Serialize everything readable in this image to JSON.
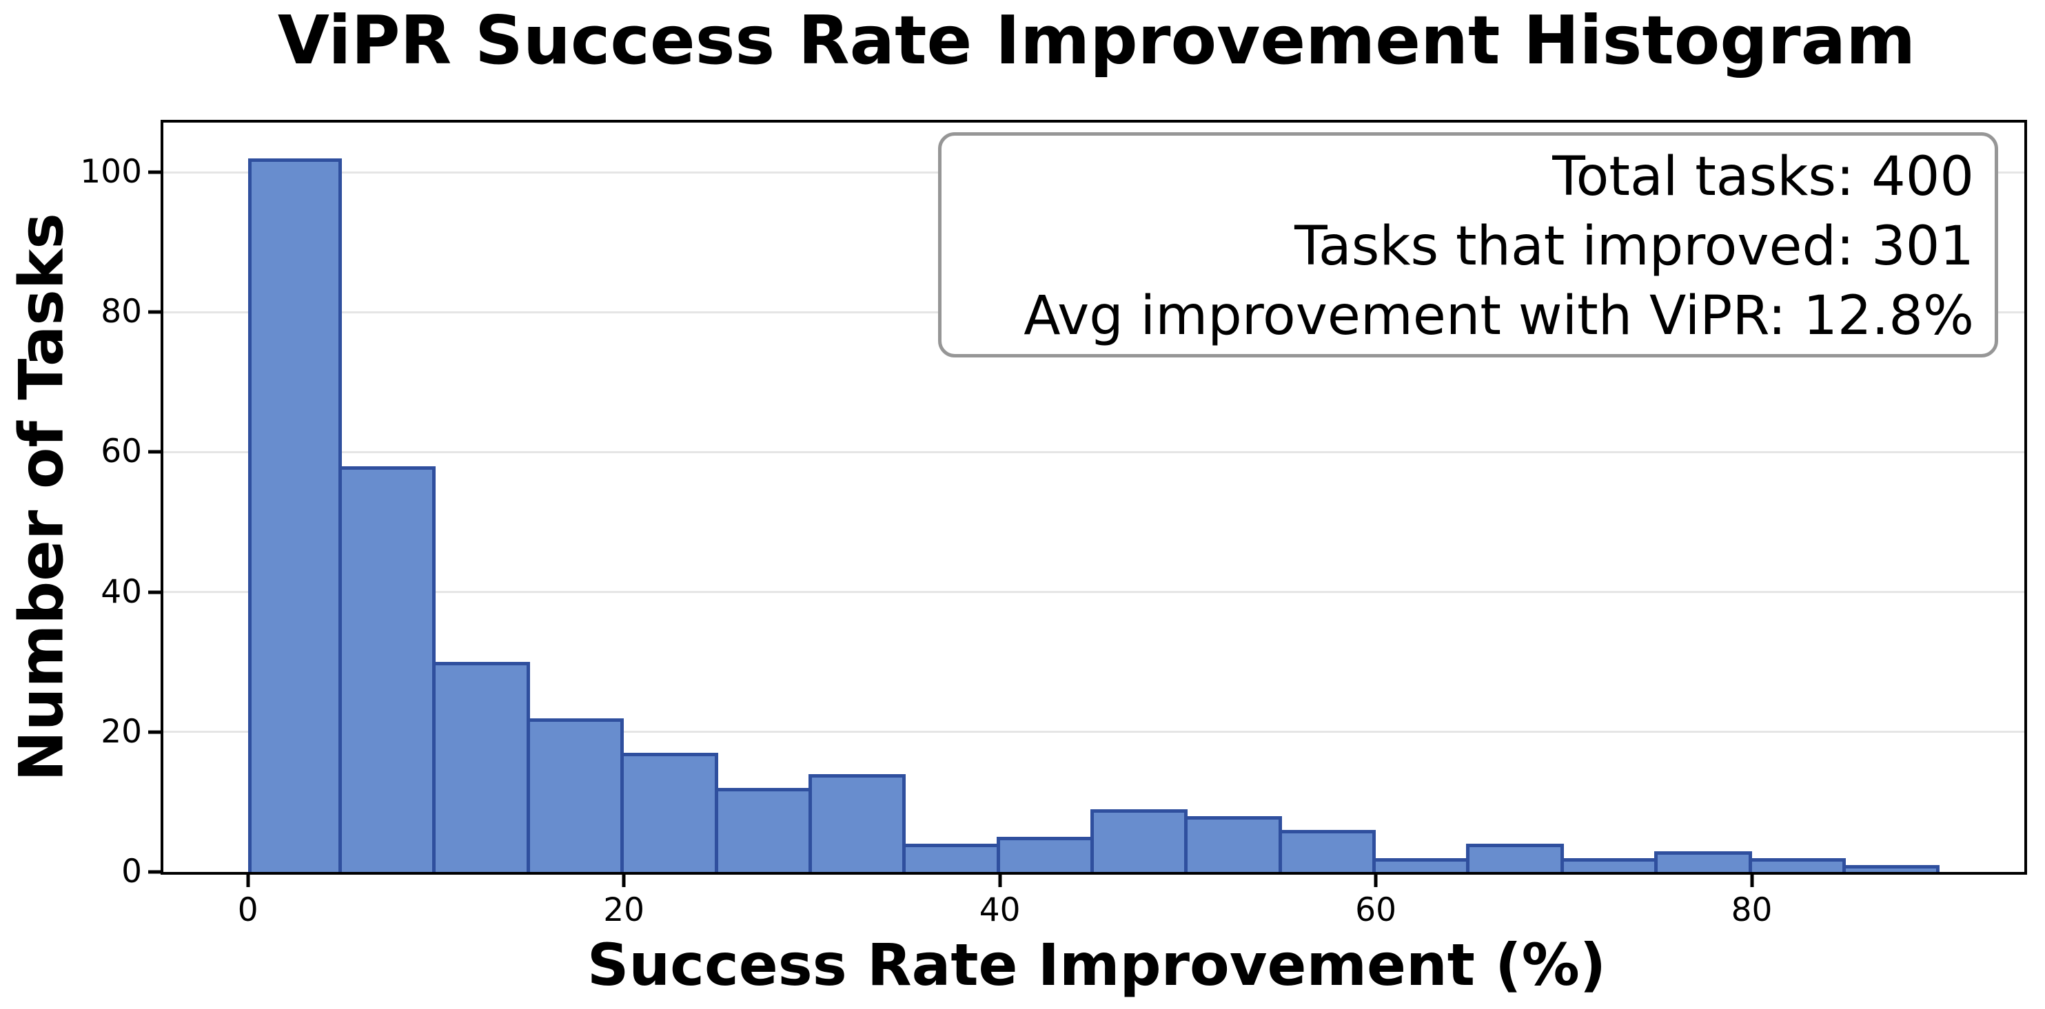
{
  "chart_data": {
    "type": "bar",
    "subtype": "histogram",
    "title": "ViPR Success Rate Improvement Histogram",
    "xlabel": "Success Rate Improvement (%)",
    "ylabel": "Number of Tasks",
    "bin_width": 5,
    "bin_edges": [
      0,
      5,
      10,
      15,
      20,
      25,
      30,
      35,
      40,
      45,
      50,
      55,
      60,
      65,
      70,
      75,
      80,
      85,
      90
    ],
    "counts": [
      102,
      58,
      30,
      22,
      17,
      12,
      14,
      4,
      5,
      9,
      8,
      6,
      2,
      4,
      2,
      3,
      2,
      1
    ],
    "xticks": [
      0,
      20,
      40,
      60,
      80
    ],
    "yticks": [
      0,
      20,
      40,
      60,
      80,
      100
    ],
    "xlim": [
      -4.5,
      94.5
    ],
    "ylim": [
      0,
      107.1
    ],
    "grid": "horizontal",
    "legend": "none",
    "annotation": {
      "lines": [
        "Total tasks: 400",
        "Tasks that improved: 301",
        "Avg improvement with ViPR: 12.8%"
      ]
    },
    "colors": {
      "bar_fill": "#688dce",
      "bar_edge": "#2f4f9e",
      "grid": "#e5e5e5",
      "axis": "#000000",
      "text": "#000000",
      "annotation_border": "#969696",
      "annotation_bg": "#ffffff",
      "background": "#ffffff"
    }
  }
}
